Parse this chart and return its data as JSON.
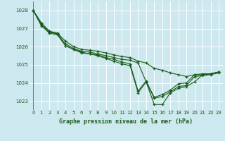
{
  "title": "Graphe pression niveau de la mer (hPa)",
  "bg_color": "#cde8ee",
  "grid_color": "#ffffff",
  "line_color": "#1a5c1a",
  "xlim": [
    -0.5,
    23.5
  ],
  "ylim": [
    1022.5,
    1028.5
  ],
  "yticks": [
    1023,
    1024,
    1025,
    1026,
    1027,
    1028
  ],
  "xticks": [
    0,
    1,
    2,
    3,
    4,
    5,
    6,
    7,
    8,
    9,
    10,
    11,
    12,
    13,
    14,
    15,
    16,
    17,
    18,
    19,
    20,
    21,
    22,
    23
  ],
  "series": [
    [
      1028.0,
      1027.3,
      1026.85,
      1026.75,
      1026.3,
      1026.0,
      1025.85,
      1025.8,
      1025.75,
      1025.65,
      1025.55,
      1025.45,
      1025.4,
      1025.2,
      1025.1,
      1024.8,
      1024.7,
      1024.55,
      1024.45,
      1024.35,
      1024.45,
      1024.5,
      1024.5,
      1024.6
    ],
    [
      1028.0,
      1027.3,
      1026.85,
      1026.7,
      1026.15,
      1025.9,
      1025.75,
      1025.7,
      1025.6,
      1025.5,
      1025.4,
      1025.3,
      1025.25,
      1025.1,
      1024.05,
      1022.8,
      1022.8,
      1023.45,
      1023.7,
      1023.8,
      1024.05,
      1024.45,
      1024.5,
      1024.6
    ],
    [
      1028.0,
      1027.2,
      1026.8,
      1026.7,
      1026.05,
      1025.85,
      1025.7,
      1025.6,
      1025.55,
      1025.4,
      1025.3,
      1025.15,
      1025.05,
      1023.55,
      1024.1,
      1023.2,
      1023.35,
      1023.6,
      1023.95,
      1024.0,
      1024.45,
      1024.45,
      1024.5,
      1024.6
    ],
    [
      1028.0,
      1027.15,
      1026.75,
      1026.65,
      1026.05,
      1025.85,
      1025.65,
      1025.6,
      1025.5,
      1025.35,
      1025.2,
      1025.05,
      1024.95,
      1023.45,
      1024.05,
      1023.15,
      1023.25,
      1023.5,
      1023.8,
      1023.85,
      1024.35,
      1024.4,
      1024.45,
      1024.55
    ]
  ]
}
